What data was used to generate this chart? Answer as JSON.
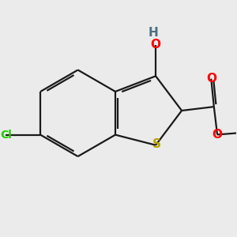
{
  "background_color": "#EBEBEB",
  "bond_color": "#1a1a1a",
  "bond_width": 1.6,
  "atoms": {
    "S": {
      "color": "#b8a000",
      "fontsize": 11
    },
    "O": {
      "color": "#FF0000",
      "fontsize": 11
    },
    "Cl": {
      "color": "#22cc00",
      "fontsize": 10
    },
    "H": {
      "color": "#4a7080",
      "fontsize": 11
    }
  },
  "scale": 1.0,
  "xlim": [
    -2.8,
    2.8
  ],
  "ylim": [
    -2.8,
    2.8
  ]
}
